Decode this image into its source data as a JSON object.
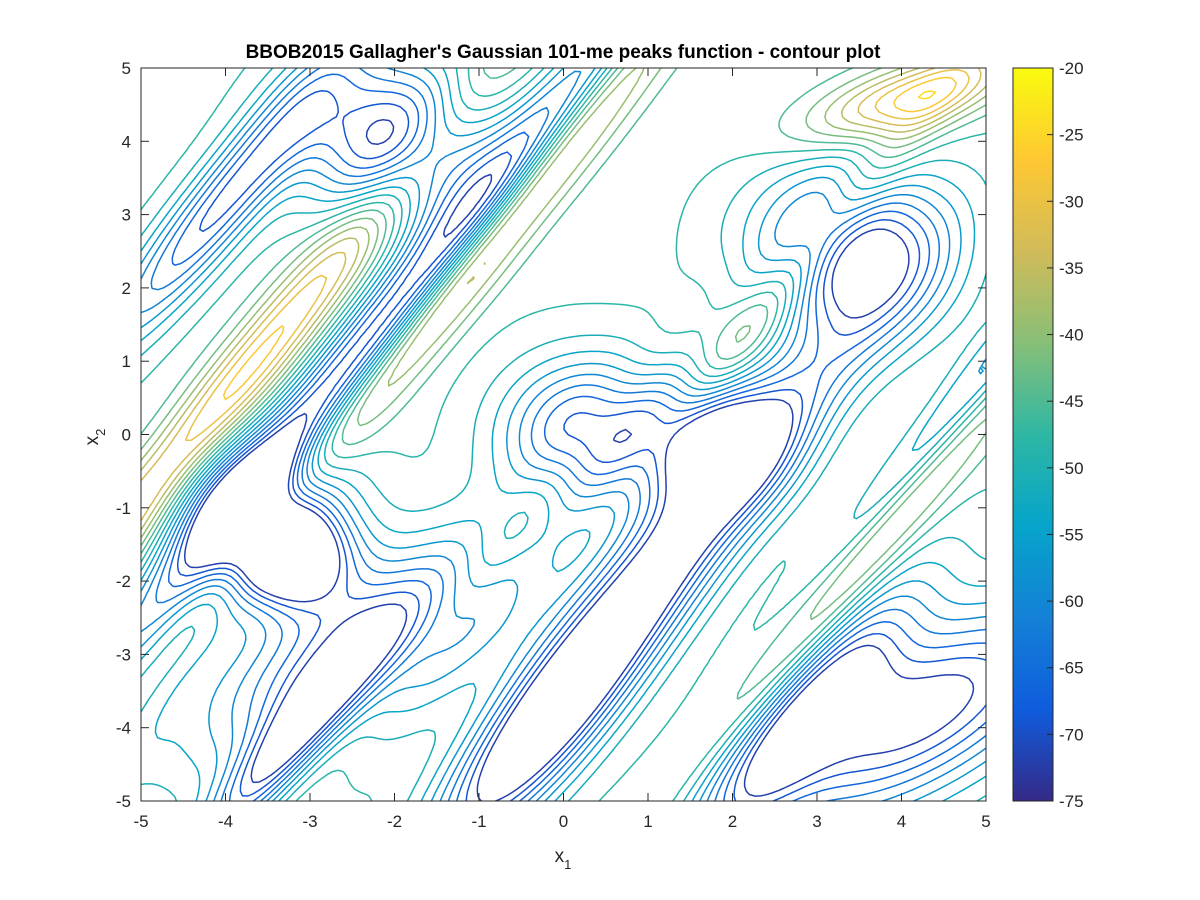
{
  "chart_data": {
    "type": "contour",
    "title": "BBOB2015 Gallagher's Gaussian 101-me peaks function - contour plot",
    "xlabel": {
      "base": "x",
      "subscript": "1"
    },
    "ylabel": {
      "base": "x",
      "subscript": "2"
    },
    "xlim": [
      -5,
      5
    ],
    "ylim": [
      -5,
      5
    ],
    "xticks": [
      "-5",
      "-4",
      "-3",
      "-2",
      "-1",
      "0",
      "1",
      "2",
      "3",
      "4",
      "5"
    ],
    "yticks": [
      "-5",
      "-4",
      "-3",
      "-2",
      "-1",
      "0",
      "1",
      "2",
      "3",
      "4",
      "5"
    ],
    "grid": false,
    "colorbar": {
      "colormap": "parula",
      "range": [
        -75,
        -20
      ],
      "ticks": [
        "-75",
        "-70",
        "-65",
        "-60",
        "-55",
        "-50",
        "-45",
        "-40",
        "-35",
        "-30",
        "-25",
        "-20"
      ],
      "stops": [
        "#352a87",
        "#0f5cdd",
        "#1481d6",
        "#06a4ca",
        "#2eb7a4",
        "#87bf77",
        "#d1bb59",
        "#fec832",
        "#f9fb0e"
      ]
    },
    "contour_levels": [
      -72,
      -69,
      -66,
      -63,
      -60,
      -57,
      -54,
      -51,
      -48,
      -45,
      -42,
      -39,
      -36,
      -33,
      -30,
      -27,
      -24
    ],
    "features": [
      {
        "kind": "ridge",
        "center": [
          -4.2,
          0.2
        ],
        "angle_deg": 55,
        "length": 7.5,
        "width": 0.55,
        "level": -25
      },
      {
        "kind": "ridge",
        "center": [
          -0.9,
          2.6
        ],
        "angle_deg": 55,
        "length": 6.5,
        "width": 0.5,
        "level": -28
      },
      {
        "kind": "ridge",
        "center": [
          3.9,
          -1.0
        ],
        "angle_deg": 55,
        "length": 6.0,
        "width": 0.5,
        "level": -24
      },
      {
        "kind": "ridge",
        "center": [
          2.6,
          2.0
        ],
        "angle_deg": 55,
        "length": 5.0,
        "width": 0.45,
        "level": -36
      },
      {
        "kind": "ridge",
        "center": [
          -1.2,
          -2.2
        ],
        "angle_deg": 55,
        "length": 5.5,
        "width": 0.45,
        "level": -40
      },
      {
        "kind": "ridge",
        "center": [
          4.1,
          4.6
        ],
        "angle_deg": 20,
        "length": 1.8,
        "width": 0.6,
        "level": -27
      },
      {
        "kind": "ridge",
        "center": [
          -4.5,
          -3.4
        ],
        "angle_deg": 60,
        "length": 3.0,
        "width": 0.4,
        "level": -50
      },
      {
        "kind": "well",
        "center": [
          -2.0,
          4.0
        ],
        "angle_deg": 0,
        "length": 1.5,
        "width": 1.5,
        "level": -75
      },
      {
        "kind": "well",
        "center": [
          3.4,
          2.5
        ],
        "angle_deg": 0,
        "length": 1.6,
        "width": 1.6,
        "level": -75
      },
      {
        "kind": "well",
        "center": [
          -3.6,
          -1.1
        ],
        "angle_deg": 0,
        "length": 1.4,
        "width": 1.4,
        "level": -74
      },
      {
        "kind": "well",
        "center": [
          -3.2,
          -1.7
        ],
        "angle_deg": 0,
        "length": 0.9,
        "width": 0.9,
        "level": -74
      },
      {
        "kind": "well",
        "center": [
          0.3,
          0.0
        ],
        "angle_deg": 0,
        "length": 1.4,
        "width": 1.4,
        "level": -72
      },
      {
        "kind": "well",
        "center": [
          1.7,
          0.0
        ],
        "angle_deg": 0,
        "length": 1.2,
        "width": 1.2,
        "level": -72
      },
      {
        "kind": "well",
        "center": [
          1.3,
          -1.6
        ],
        "angle_deg": 55,
        "length": 5.5,
        "width": 0.8,
        "level": -75
      },
      {
        "kind": "well",
        "center": [
          -2.2,
          1.4
        ],
        "angle_deg": 55,
        "length": 8.5,
        "width": 0.55,
        "level": -74
      },
      {
        "kind": "well",
        "center": [
          -2.3,
          -2.9
        ],
        "angle_deg": 35,
        "length": 3.2,
        "width": 1.3,
        "level": -73
      },
      {
        "kind": "well",
        "center": [
          4.2,
          -3.8
        ],
        "angle_deg": 35,
        "length": 3.2,
        "width": 1.4,
        "level": -75
      },
      {
        "kind": "well",
        "center": [
          -4.0,
          3.2
        ],
        "angle_deg": 55,
        "length": 3.5,
        "width": 0.6,
        "level": -70
      },
      {
        "kind": "well",
        "center": [
          4.6,
          0.2
        ],
        "angle_deg": 55,
        "length": 6.0,
        "width": 0.45,
        "level": -72
      },
      {
        "kind": "well",
        "center": [
          -0.2,
          -4.0
        ],
        "angle_deg": 55,
        "length": 3.0,
        "width": 0.8,
        "level": -70
      },
      {
        "kind": "well",
        "center": [
          2.9,
          -3.8
        ],
        "angle_deg": 55,
        "length": 3.0,
        "width": 0.7,
        "level": -70
      },
      {
        "kind": "well",
        "center": [
          -3.4,
          -4.4
        ],
        "angle_deg": 55,
        "length": 2.5,
        "width": 0.5,
        "level": -68
      }
    ]
  }
}
